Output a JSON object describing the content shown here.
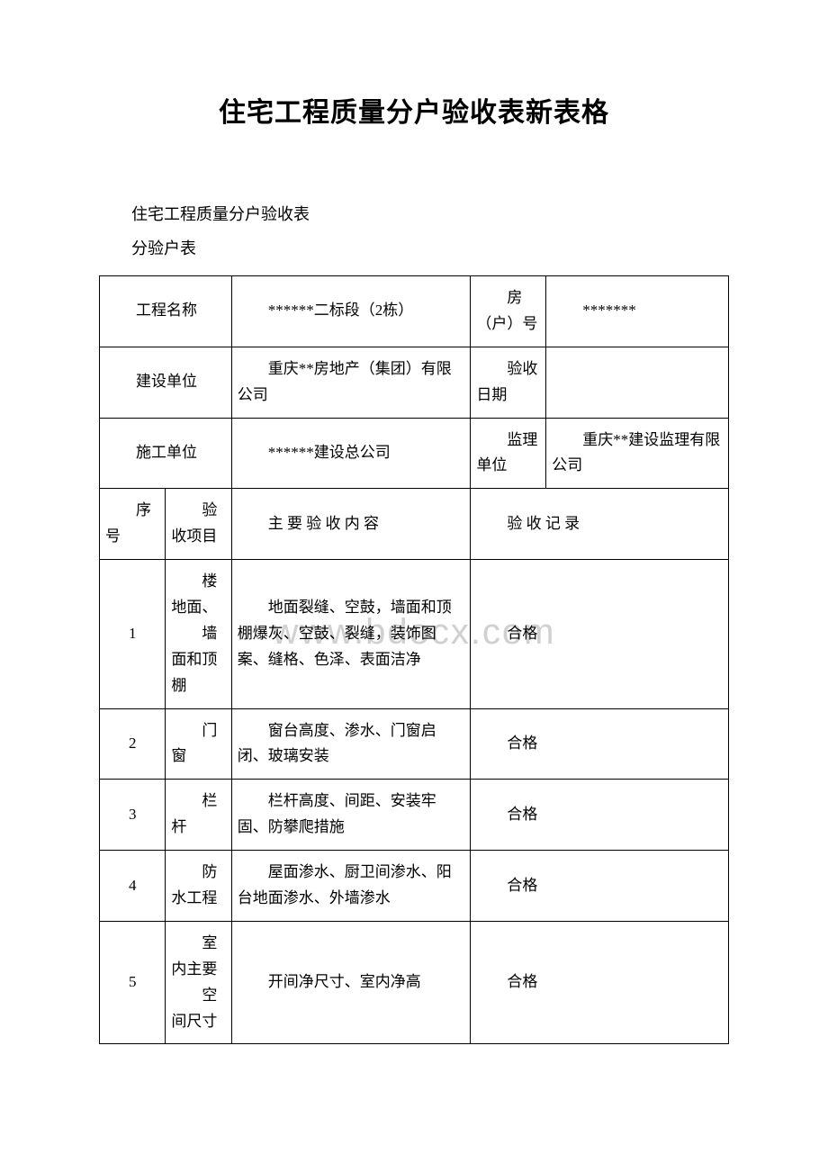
{
  "title": "住宅工程质量分户验收表新表格",
  "subtitle1": "住宅工程质量分户验收表",
  "subtitle2": "分验户表",
  "watermark": "www.bdocx.com",
  "header": {
    "r1c1": "工程名称",
    "r1c2": "******二标段（2栋）",
    "r1c3": "房（户）号",
    "r1c4": "*******",
    "r2c1": "建设单位",
    "r2c2": "重庆**房地产（集团）有限公司",
    "r2c3": "验收日期",
    "r2c4": "",
    "r3c1": "施工单位",
    "r3c2": "******建设总公司",
    "r3c3": "监理单位",
    "r3c4": "重庆**建设监理有限公司"
  },
  "columns": {
    "seq": "序号",
    "item": "验收项目",
    "content": "主 要 验 收 内 容",
    "record": "验 收 记 录"
  },
  "rows": [
    {
      "seq": "1",
      "item_line1": "楼地面、",
      "item_line2": "墙面和顶棚",
      "content": "地面裂缝、空鼓，墙面和顶棚爆灰、空鼓、裂缝，装饰图案、缝格、色泽、表面洁净",
      "record": "合格"
    },
    {
      "seq": "2",
      "item": "门窗",
      "content": "窗台高度、渗水、门窗启闭、玻璃安装",
      "record": "合格"
    },
    {
      "seq": "3",
      "item": "栏杆",
      "content": "栏杆高度、间距、安装牢固、防攀爬措施",
      "record": "合格"
    },
    {
      "seq": "4",
      "item": "防水工程",
      "content": "屋面渗水、厨卫间渗水、阳台地面渗水、外墙渗水",
      "record": "合格"
    },
    {
      "seq": "5",
      "item_line1": "室内主要",
      "item_line2": "空间尺寸",
      "content": "开间净尺寸、室内净高",
      "record": "合格"
    }
  ]
}
